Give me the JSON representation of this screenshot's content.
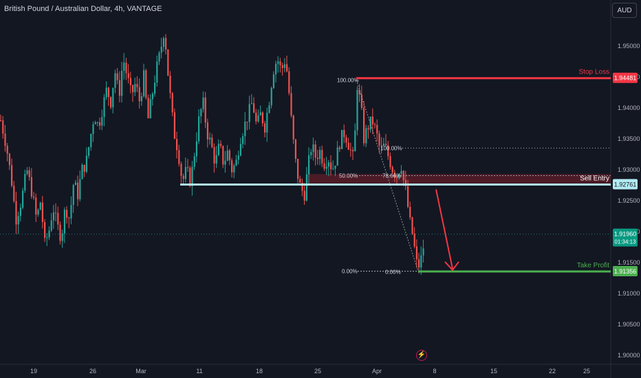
{
  "header": {
    "title": "British Pound / Australian Dollar, 4h, VANTAGE",
    "currency_button": "AUD"
  },
  "colors": {
    "background": "#131722",
    "up": "#26a69a",
    "down": "#ef5350",
    "stop_loss": "#f23645",
    "take_profit": "#4caf50",
    "entry": "#b2ebf2",
    "text": "#d1d4dc"
  },
  "chart_data": {
    "type": "candlestick",
    "title": "British Pound / Australian Dollar, 4h, VANTAGE",
    "ylim": [
      1.8975,
      1.9575
    ],
    "y_ticks": [
      "1.95000",
      "1.94500",
      "1.94000",
      "1.93500",
      "1.93000",
      "1.92500",
      "1.92000",
      "1.91500",
      "1.91000",
      "1.90500",
      "1.90000"
    ],
    "x_ticks": [
      "19",
      "26",
      "Mar",
      "11",
      "18",
      "25",
      "Apr",
      "8",
      "15",
      "22",
      "25"
    ],
    "close_path": [
      [
        0,
        1.938
      ],
      [
        8,
        1.934
      ],
      [
        16,
        1.928
      ],
      [
        22,
        1.922
      ],
      [
        30,
        1.925
      ],
      [
        38,
        1.93
      ],
      [
        46,
        1.926
      ],
      [
        52,
        1.922
      ],
      [
        58,
        1.925
      ],
      [
        64,
        1.918
      ],
      [
        70,
        1.92
      ],
      [
        76,
        1.924
      ],
      [
        82,
        1.921
      ],
      [
        88,
        1.919
      ],
      [
        94,
        1.924
      ],
      [
        100,
        1.922
      ],
      [
        106,
        1.928
      ],
      [
        112,
        1.926
      ],
      [
        118,
        1.93
      ],
      [
        124,
        1.931
      ],
      [
        130,
        1.935
      ],
      [
        136,
        1.939
      ],
      [
        142,
        1.937
      ],
      [
        148,
        1.94
      ],
      [
        154,
        1.943
      ],
      [
        160,
        1.941
      ],
      [
        166,
        1.946
      ],
      [
        172,
        1.942
      ],
      [
        178,
        1.948
      ],
      [
        184,
        1.945
      ],
      [
        190,
        1.942
      ],
      [
        196,
        1.944
      ],
      [
        202,
        1.941
      ],
      [
        208,
        1.945
      ],
      [
        214,
        1.938
      ],
      [
        220,
        1.942
      ],
      [
        226,
        1.946
      ],
      [
        232,
        1.949
      ],
      [
        238,
        1.953
      ],
      [
        242,
        1.947
      ],
      [
        248,
        1.94
      ],
      [
        252,
        1.936
      ],
      [
        258,
        1.933
      ],
      [
        264,
        1.928
      ],
      [
        270,
        1.93
      ],
      [
        276,
        1.928
      ],
      [
        282,
        1.933
      ],
      [
        288,
        1.938
      ],
      [
        294,
        1.941
      ],
      [
        300,
        1.936
      ],
      [
        306,
        1.934
      ],
      [
        312,
        1.931
      ],
      [
        318,
        1.934
      ],
      [
        324,
        1.931
      ],
      [
        330,
        1.933
      ],
      [
        336,
        1.93
      ],
      [
        342,
        1.931
      ],
      [
        348,
        1.935
      ],
      [
        354,
        1.937
      ],
      [
        360,
        1.939
      ],
      [
        366,
        1.941
      ],
      [
        372,
        1.937
      ],
      [
        378,
        1.939
      ],
      [
        384,
        1.937
      ],
      [
        390,
        1.941
      ],
      [
        396,
        1.946
      ],
      [
        402,
        1.948
      ],
      [
        408,
        1.946
      ],
      [
        414,
        1.948
      ],
      [
        418,
        1.944
      ],
      [
        424,
        1.936
      ],
      [
        430,
        1.93
      ],
      [
        436,
        1.927
      ],
      [
        442,
        1.926
      ],
      [
        446,
        1.93
      ],
      [
        452,
        1.934
      ],
      [
        458,
        1.932
      ],
      [
        464,
        1.933
      ],
      [
        470,
        1.931
      ],
      [
        476,
        1.932
      ],
      [
        482,
        1.93
      ],
      [
        488,
        1.932
      ],
      [
        494,
        1.935
      ],
      [
        500,
        1.936
      ],
      [
        506,
        1.934
      ],
      [
        512,
        1.932
      ],
      [
        516,
        1.937
      ],
      [
        518,
        1.944
      ],
      [
        524,
        1.94
      ],
      [
        528,
        1.935
      ],
      [
        534,
        1.937
      ],
      [
        540,
        1.938
      ],
      [
        546,
        1.936
      ],
      [
        552,
        1.933
      ],
      [
        558,
        1.934
      ],
      [
        564,
        1.932
      ],
      [
        570,
        1.93
      ],
      [
        576,
        1.929
      ],
      [
        582,
        1.931
      ],
      [
        586,
        1.928
      ],
      [
        590,
        1.926
      ],
      [
        594,
        1.922
      ],
      [
        598,
        1.92
      ],
      [
        602,
        1.917
      ],
      [
        606,
        1.914
      ],
      [
        610,
        1.915
      ],
      [
        614,
        1.917
      ],
      [
        616,
        1.9196
      ]
    ],
    "fib_upper": {
      "levels": [
        "100.00%",
        "50.00%",
        "0.00%"
      ],
      "from": 1.9445,
      "to": 1.9136
    },
    "fib_lower": {
      "levels": [
        "100.00%",
        "78.66%",
        "0.00%"
      ],
      "from": 1.9335,
      "to": 1.9136
    },
    "sell_zone": [
      1.9278,
      1.9293
    ],
    "stop_loss": {
      "label": "Stop Loss",
      "price": "1.94481",
      "value": 1.94481
    },
    "entry": {
      "label": "Sell Entry",
      "price": "1.92761",
      "value": 1.92761
    },
    "take_profit": {
      "label": "Take Profit",
      "price": "1.91356",
      "value": 1.91356
    },
    "current": {
      "price": "1.91960",
      "countdown": "01:34:13",
      "value": 1.9196
    }
  }
}
